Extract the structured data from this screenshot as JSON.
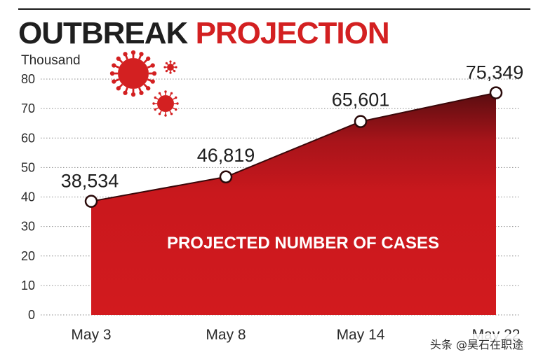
{
  "title_part1": "OUTBREAK",
  "title_part2": "PROJECTION",
  "colors": {
    "accent": "#d32021",
    "area_dark": "#5a0d10",
    "area_mid": "#c3181c",
    "area_base": "#d0191d",
    "title_dark": "#1f1f1f"
  },
  "watermark": "头条 @昊石在职途",
  "chart_data": {
    "type": "area",
    "ylabel": "Thousand",
    "categories": [
      "May 3",
      "May 8",
      "May 14",
      "May 22"
    ],
    "values": [
      38.534,
      46.819,
      65.601,
      75.349
    ],
    "data_labels": [
      "38,534",
      "46,819",
      "65,601",
      "75,349"
    ],
    "ylim": [
      0,
      80
    ],
    "yticks": [
      0,
      10,
      20,
      30,
      40,
      50,
      60,
      70,
      80
    ],
    "annotation": "PROJECTED NUMBER OF CASES",
    "grid": true,
    "legend": "none"
  }
}
